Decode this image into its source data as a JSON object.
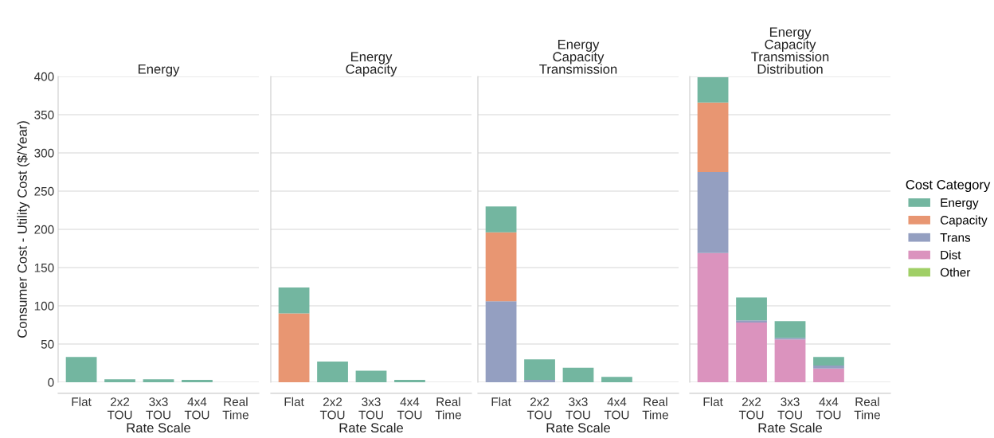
{
  "chart_data": [
    {
      "type": "bar",
      "title": "Energy",
      "xlabel": "Rate Scale",
      "ylabel": "Consumer Cost - Utility Cost ($/Year)",
      "categories": [
        "Flat",
        "2x2\nTOU",
        "3x3\nTOU",
        "4x4\nTOU",
        "Real\nTime"
      ],
      "stacked": true,
      "ylim": [
        0,
        400
      ],
      "yticks": [
        0,
        50,
        100,
        150,
        200,
        250,
        300,
        350,
        400
      ],
      "grid": "y",
      "series": [
        {
          "color": "#73b6a0",
          "values": [
            33,
            4,
            4,
            3,
            0
          ]
        }
      ]
    },
    {
      "type": "bar",
      "title": "Energy\nCapacity",
      "xlabel": "Rate Scale",
      "categories": [
        "Flat",
        "2x2\nTOU",
        "3x3\nTOU",
        "4x4\nTOU",
        "Real\nTime"
      ],
      "stacked": true,
      "ylim": [
        0,
        400
      ],
      "yticks": [
        0,
        50,
        100,
        150,
        200,
        250,
        300,
        350,
        400
      ],
      "grid": "y",
      "tick_labels": "x",
      "series": [
        {
          "color": "#e89672",
          "values": [
            90,
            0,
            0,
            0,
            0
          ]
        },
        {
          "color": "#73b6a0",
          "values": [
            34,
            27,
            15,
            3,
            0
          ]
        }
      ]
    },
    {
      "type": "bar",
      "title": "Energy\nCapacity\nTransmission",
      "xlabel": "Rate Scale",
      "categories": [
        "Flat",
        "2x2\nTOU",
        "3x3\nTOU",
        "4x4\nTOU",
        "Real\nTime"
      ],
      "stacked": true,
      "ylim": [
        0,
        400
      ],
      "yticks": [
        0,
        50,
        100,
        150,
        200,
        250,
        300,
        350,
        400
      ],
      "grid": "y",
      "tick_labels": "x",
      "series": [
        {
          "color": "#949fc1",
          "values": [
            106,
            3,
            0,
            0,
            0
          ]
        },
        {
          "color": "#e89672",
          "values": [
            90,
            0,
            0,
            0,
            0
          ]
        },
        {
          "color": "#73b6a0",
          "values": [
            34,
            27,
            19,
            7,
            0
          ]
        }
      ]
    },
    {
      "type": "bar",
      "title": "Energy\nCapacity\nTransmission\nDistribution",
      "xlabel": "Rate Scale",
      "categories": [
        "Flat",
        "2x2\nTOU",
        "3x3\nTOU",
        "4x4\nTOU",
        "Real\nTime"
      ],
      "stacked": true,
      "ylim": [
        0,
        400
      ],
      "yticks": [
        0,
        50,
        100,
        150,
        200,
        250,
        300,
        350,
        400
      ],
      "grid": "y",
      "tick_labels": "x",
      "legend": "right",
      "legend_title": "Cost Category",
      "series": [
        {
          "name": "Other",
          "color": "#a0cf66",
          "values": [
            0,
            0,
            0,
            0,
            0
          ]
        },
        {
          "name": "Dist",
          "color": "#db93be",
          "values": [
            169,
            78,
            56,
            18,
            0
          ]
        },
        {
          "name": "Trans",
          "color": "#949fc1",
          "values": [
            106,
            3,
            2,
            4,
            0
          ]
        },
        {
          "name": "Capacity",
          "color": "#e89672",
          "values": [
            91,
            0,
            0,
            0,
            0
          ]
        },
        {
          "name": "Energy",
          "color": "#73b6a0",
          "values": [
            33,
            30,
            22,
            11,
            0
          ]
        }
      ]
    }
  ]
}
